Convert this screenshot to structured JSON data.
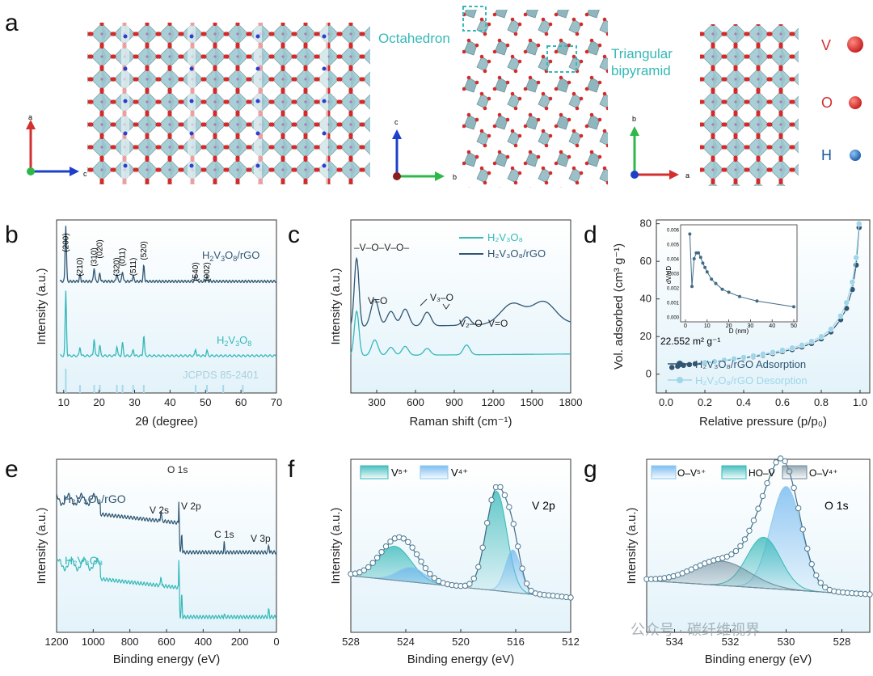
{
  "panel_letters": [
    "a",
    "b",
    "c",
    "d",
    "e",
    "f",
    "g"
  ],
  "structure": {
    "octahedron_label": "Octahedron",
    "bipyramid_label_1": "Triangular",
    "bipyramid_label_2": "bipyramid",
    "legend": [
      {
        "symbol": "V",
        "color": "#e02424"
      },
      {
        "symbol": "O",
        "color": "#e53935"
      },
      {
        "symbol": "H",
        "color": "#1e6fc0"
      }
    ],
    "axes_1": {
      "up": "a",
      "right": "c",
      "up_color": "#d32f2f",
      "right_color": "#1e40c8"
    },
    "axes_2": {
      "up": "c",
      "right": "b",
      "up_color": "#1e40c8",
      "right_color": "#2fb84a"
    },
    "axes_3": {
      "up": "b",
      "right": "a",
      "up_color": "#2fb84a",
      "right_color": "#d32f2f"
    }
  },
  "watermark": "公众号 · 碳纤维视界",
  "chart_data": [
    {
      "id": "b",
      "type": "line",
      "xlabel": "2θ (degree)",
      "ylabel": "Intensity (a.u.)",
      "xlim": [
        8,
        70
      ],
      "xticks": [
        10,
        20,
        30,
        40,
        50,
        60,
        70
      ],
      "series": [
        {
          "name": "H2V3O8/rGO",
          "label_main": "H",
          "label_sub": [
            "2",
            "3",
            "8"
          ],
          "label_text": "H₂V₃O₈/rGO",
          "color": "#2f5672",
          "peaks": [
            [
              10.6,
              1.0
            ],
            [
              14.6,
              0.12
            ],
            [
              18.6,
              0.25
            ],
            [
              20.2,
              0.15
            ],
            [
              25.0,
              0.14
            ],
            [
              26.6,
              0.18
            ],
            [
              29.6,
              0.1
            ],
            [
              32.6,
              0.28
            ],
            [
              47.2,
              0.1
            ],
            [
              50.4,
              0.08
            ]
          ]
        },
        {
          "name": "H2V3O8",
          "label_text": "H₂V₃O₈",
          "color": "#35b8b8",
          "peaks": [
            [
              10.6,
              1.0
            ],
            [
              14.6,
              0.14
            ],
            [
              18.6,
              0.27
            ],
            [
              20.2,
              0.16
            ],
            [
              25.0,
              0.15
            ],
            [
              26.6,
              0.2
            ],
            [
              29.6,
              0.1
            ],
            [
              32.6,
              0.32
            ],
            [
              47.2,
              0.1
            ],
            [
              50.4,
              0.08
            ]
          ]
        },
        {
          "name": "JCPDS 85-2401",
          "label_text": "JCPDS 85-2401",
          "color": "#a8d8e8",
          "sticks": [
            10.6,
            14.6,
            18.6,
            20.2,
            25.0,
            26.6,
            29.6,
            32.6,
            47.2,
            50.4,
            55.0,
            60.5
          ]
        }
      ],
      "peak_labels": [
        {
          "text": "(200)",
          "x": 10.6
        },
        {
          "text": "(210)",
          "x": 14.6
        },
        {
          "text": "(310)",
          "x": 18.6
        },
        {
          "text": "(020)",
          "x": 20.2
        },
        {
          "text": "(320)",
          "x": 25.0
        },
        {
          "text": "(011)",
          "x": 26.6
        },
        {
          "text": "(511)",
          "x": 29.6
        },
        {
          "text": "(520)",
          "x": 32.6
        },
        {
          "text": "(540)",
          "x": 47.2
        },
        {
          "text": "(002)",
          "x": 50.4
        }
      ]
    },
    {
      "id": "c",
      "type": "line",
      "xlabel": "Raman shift (cm⁻¹)",
      "ylabel": "Intensity (a.u.)",
      "xlim": [
        100,
        1800
      ],
      "xticks": [
        300,
        600,
        900,
        1200,
        1500,
        1800
      ],
      "series": [
        {
          "name": "H2V3O8",
          "label_text": "H₂V₃O₈",
          "color": "#35b8b8",
          "peaks": [
            [
              145,
              1.0
            ],
            [
              285,
              0.35
            ],
            [
              410,
              0.18
            ],
            [
              520,
              0.2
            ],
            [
              690,
              0.15
            ],
            [
              995,
              0.22
            ]
          ]
        },
        {
          "name": "H2V3O8/rGO",
          "label_text": "H₂V₃O₈/rGO",
          "color": "#2f5672",
          "peaks": [
            [
              145,
              1.0
            ],
            [
              285,
              0.4
            ],
            [
              410,
              0.22
            ],
            [
              520,
              0.25
            ],
            [
              690,
              0.2
            ],
            [
              995,
              0.12
            ],
            [
              1350,
              0.3
            ],
            [
              1590,
              0.32
            ]
          ]
        }
      ],
      "annotations": [
        {
          "text": "–V–O–V–O–"
        },
        {
          "text": "V=O"
        },
        {
          "text": "V₃–O"
        },
        {
          "text": "V₂–O"
        },
        {
          "text": "V=O"
        }
      ]
    },
    {
      "id": "d",
      "type": "scatter",
      "xlabel": "Relative pressure (p/p₀)",
      "ylabel": "Vol. adsorbed (cm³ g⁻¹)",
      "xlim": [
        -0.05,
        1.05
      ],
      "ylim": [
        -10,
        82
      ],
      "xticks": [
        0.0,
        0.2,
        0.4,
        0.6,
        0.8,
        1.0
      ],
      "yticks": [
        0,
        20,
        40,
        60,
        80
      ],
      "bet_label": "22.552 m² g⁻¹",
      "series": [
        {
          "name": "H2V3O8/rGO Adsorption",
          "label_text": "H₂V₃O₈/rGO Adsorption",
          "color": "#2f5672",
          "x": [
            0.03,
            0.06,
            0.09,
            0.12,
            0.15,
            0.2,
            0.25,
            0.3,
            0.35,
            0.4,
            0.45,
            0.5,
            0.55,
            0.6,
            0.65,
            0.7,
            0.75,
            0.8,
            0.85,
            0.9,
            0.93,
            0.96,
            0.98,
            0.995
          ],
          "y": [
            3.6,
            4.2,
            4.7,
            5.1,
            5.5,
            6.1,
            6.7,
            7.3,
            7.9,
            8.6,
            9.3,
            10.1,
            11.0,
            12.0,
            13.1,
            14.5,
            16.3,
            18.8,
            22.5,
            29,
            35,
            45,
            58,
            78
          ]
        },
        {
          "name": "H2V3O8/rGO Desorption",
          "label_text": "H₂V₃O₈/rGO Desorption",
          "color": "#9fd6ea",
          "x": [
            0.995,
            0.98,
            0.96,
            0.93,
            0.9,
            0.85,
            0.8,
            0.75,
            0.7,
            0.65,
            0.6,
            0.55,
            0.5,
            0.45,
            0.4,
            0.35,
            0.3,
            0.25,
            0.2
          ],
          "y": [
            80,
            62,
            49,
            38,
            31,
            24,
            20,
            17.5,
            15.5,
            14,
            12.8,
            11.7,
            10.7,
            9.8,
            9.0,
            8.2,
            7.5,
            6.8,
            6.2
          ]
        }
      ],
      "inset": {
        "xlabel": "D (nm)",
        "ylabel": "dV/dD",
        "xlim": [
          0,
          50
        ],
        "ylim": [
          0,
          0.006
        ],
        "xticks": [
          0,
          10,
          20,
          30,
          40,
          50
        ],
        "yticks": [
          0,
          0.001,
          0.002,
          0.003,
          0.004,
          0.005,
          0.006
        ],
        "ytick_labels": [
          "0.000",
          "0.001",
          "0.002",
          "0.003",
          "0.004",
          "0.005",
          "0.006"
        ],
        "x": [
          2,
          3,
          4,
          5,
          6,
          7,
          8,
          9,
          10,
          12,
          14,
          17,
          20,
          25,
          33,
          50
        ],
        "y": [
          0.0057,
          0.0021,
          0.004,
          0.0044,
          0.0044,
          0.0041,
          0.0037,
          0.0034,
          0.0031,
          0.0026,
          0.0023,
          0.0019,
          0.0017,
          0.0014,
          0.0011,
          0.0007
        ]
      }
    },
    {
      "id": "e",
      "type": "line",
      "xlabel": "Binding energy (eV)",
      "ylabel": "Intensity (a.u.)",
      "xlim": [
        1200,
        0
      ],
      "xticks": [
        1200,
        1000,
        800,
        600,
        400,
        200,
        0
      ],
      "series": [
        {
          "name": "H2V3O8/rGO",
          "label_text": "H₂V₃O₈/rGO",
          "color": "#2f5672"
        },
        {
          "name": "H2V3O8",
          "label_text": "H₂V₃O₈",
          "color": "#35b8b8"
        }
      ],
      "peak_labels": [
        {
          "text": "O 1s",
          "x": 531
        },
        {
          "text": "V 2s",
          "x": 630
        },
        {
          "text": "V 2p",
          "x": 517
        },
        {
          "text": "C 1s",
          "x": 285
        },
        {
          "text": "V 3p",
          "x": 40
        }
      ]
    },
    {
      "id": "f",
      "type": "area",
      "xlabel": "Binding energy (eV)",
      "ylabel": "Intensity (a.u.)",
      "xlim": [
        528,
        512
      ],
      "xticks": [
        528,
        524,
        520,
        516,
        512
      ],
      "legend": [
        {
          "text": "V⁵⁺",
          "color": "#35b8b8"
        },
        {
          "text": "V⁴⁺",
          "color": "#8ec7ef"
        }
      ],
      "title": "V 2p",
      "components": [
        {
          "name": "V5+ 2p3/2",
          "center": 517.4,
          "height": 0.82,
          "width": 0.75,
          "color": "#35b8b8"
        },
        {
          "name": "V4+ 2p3/2",
          "center": 516.2,
          "height": 0.35,
          "width": 0.55,
          "color": "#8ec7ef"
        },
        {
          "name": "V5+ 2p1/2",
          "center": 524.8,
          "height": 0.28,
          "width": 1.2,
          "color": "#35b8b8"
        },
        {
          "name": "V4+ 2p1/2",
          "center": 523.6,
          "height": 0.12,
          "width": 1.0,
          "color": "#8ec7ef"
        }
      ]
    },
    {
      "id": "g",
      "type": "area",
      "xlabel": "Binding energy (eV)",
      "ylabel": "Intensity (a.u.)",
      "xlim": [
        535,
        527
      ],
      "xticks": [
        534,
        532,
        530,
        528
      ],
      "legend": [
        {
          "text": "O–V⁵⁺",
          "color": "#8ec7ef"
        },
        {
          "text": "HO–V",
          "color": "#35b8b8"
        },
        {
          "text": "O–V⁴⁺",
          "color": "#6c8797"
        }
      ],
      "title": "O 1s",
      "components": [
        {
          "name": "O–V5+",
          "center": 530.0,
          "height": 0.85,
          "width": 0.55,
          "color": "#8ec7ef"
        },
        {
          "name": "HO–V",
          "center": 530.8,
          "height": 0.42,
          "width": 0.6,
          "color": "#35b8b8"
        },
        {
          "name": "O–V4+",
          "center": 532.3,
          "height": 0.2,
          "width": 1.0,
          "color": "#6c8797"
        }
      ]
    }
  ]
}
